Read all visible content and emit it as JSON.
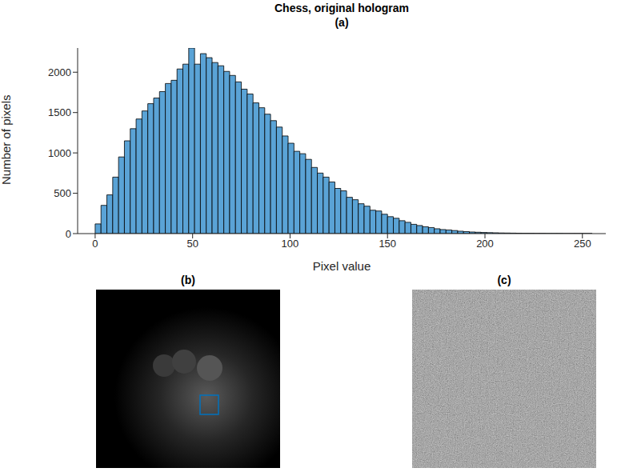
{
  "chart_data": {
    "type": "histogram",
    "title": "Chess, original hologram",
    "subtitle": "(a)",
    "x_label": "Pixel value",
    "y_label": "Number of pixels",
    "color": "#5aa3d6",
    "bins": [
      0,
      3,
      6,
      9,
      12,
      15,
      18,
      21,
      24,
      27,
      30,
      33,
      36,
      39,
      42,
      45,
      48,
      51,
      54,
      57,
      60,
      63,
      66,
      69,
      72,
      75,
      78,
      81,
      84,
      87,
      90,
      93,
      96,
      99,
      102,
      105,
      108,
      111,
      114,
      117,
      120,
      123,
      126,
      129,
      132,
      135,
      138,
      141,
      144,
      147,
      150,
      153,
      156,
      159,
      162,
      165,
      168,
      171,
      174,
      177,
      180,
      183,
      186,
      189,
      192,
      195,
      198,
      201,
      204,
      207,
      210,
      213,
      216,
      219,
      222,
      225,
      228,
      231,
      234,
      237,
      240,
      243,
      246,
      249,
      252,
      255
    ],
    "values": [
      120,
      350,
      480,
      700,
      950,
      1150,
      1300,
      1420,
      1520,
      1610,
      1680,
      1760,
      1860,
      1900,
      2040,
      2100,
      2300,
      2100,
      2230,
      2180,
      2120,
      2080,
      2010,
      1960,
      1880,
      1790,
      1730,
      1620,
      1560,
      1480,
      1400,
      1320,
      1210,
      1120,
      1020,
      990,
      920,
      820,
      750,
      700,
      640,
      560,
      530,
      450,
      420,
      370,
      340,
      290,
      280,
      240,
      210,
      190,
      160,
      140,
      115,
      100,
      85,
      75,
      60,
      50,
      45,
      38,
      30,
      25,
      20,
      17,
      14,
      12,
      10,
      8,
      7,
      6,
      5,
      4,
      4,
      3,
      3,
      2,
      2,
      2,
      1,
      1,
      1,
      1,
      1
    ],
    "xlim": [
      -9,
      262
    ],
    "ylim": [
      0,
      2300
    ],
    "xticks": [
      0,
      50,
      100,
      150,
      200,
      250
    ],
    "yticks": [
      0,
      500,
      1000,
      1500,
      2000
    ],
    "grid": false
  },
  "images": [
    {
      "title": "(b)"
    },
    {
      "title": "(c)"
    }
  ]
}
